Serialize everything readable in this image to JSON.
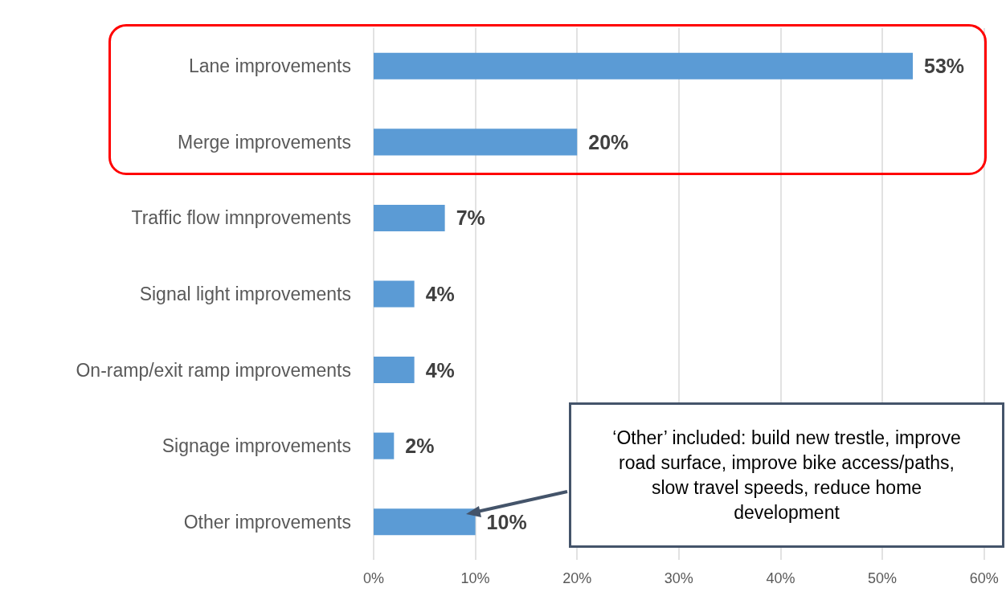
{
  "chart_data": {
    "type": "bar",
    "orientation": "horizontal",
    "categories": [
      "Lane improvements",
      "Merge improvements",
      "Traffic flow imnprovements",
      "Signal light improvements",
      "On-ramp/exit ramp improvements",
      "Signage improvements",
      "Other improvements"
    ],
    "values": [
      53,
      20,
      7,
      4,
      4,
      2,
      10
    ],
    "value_labels": [
      "53%",
      "20%",
      "7%",
      "4%",
      "4%",
      "2%",
      "10%"
    ],
    "color": "#5b9bd5",
    "xlim": [
      0,
      62
    ],
    "xticks": [
      {
        "value": 0,
        "label": "0%"
      },
      {
        "value": 10,
        "label": "10%"
      },
      {
        "value": 20,
        "label": "20%"
      },
      {
        "value": 30,
        "label": "30%"
      },
      {
        "value": 40,
        "label": "40%"
      },
      {
        "value": 50,
        "label": "50%"
      },
      {
        "value": 60,
        "label": "60%"
      }
    ],
    "grid": "x",
    "annotations": [
      "‘Other’ included: build new trestle, improve road surface, improve bike access/paths, slow travel speeds, reduce home development"
    ]
  }
}
